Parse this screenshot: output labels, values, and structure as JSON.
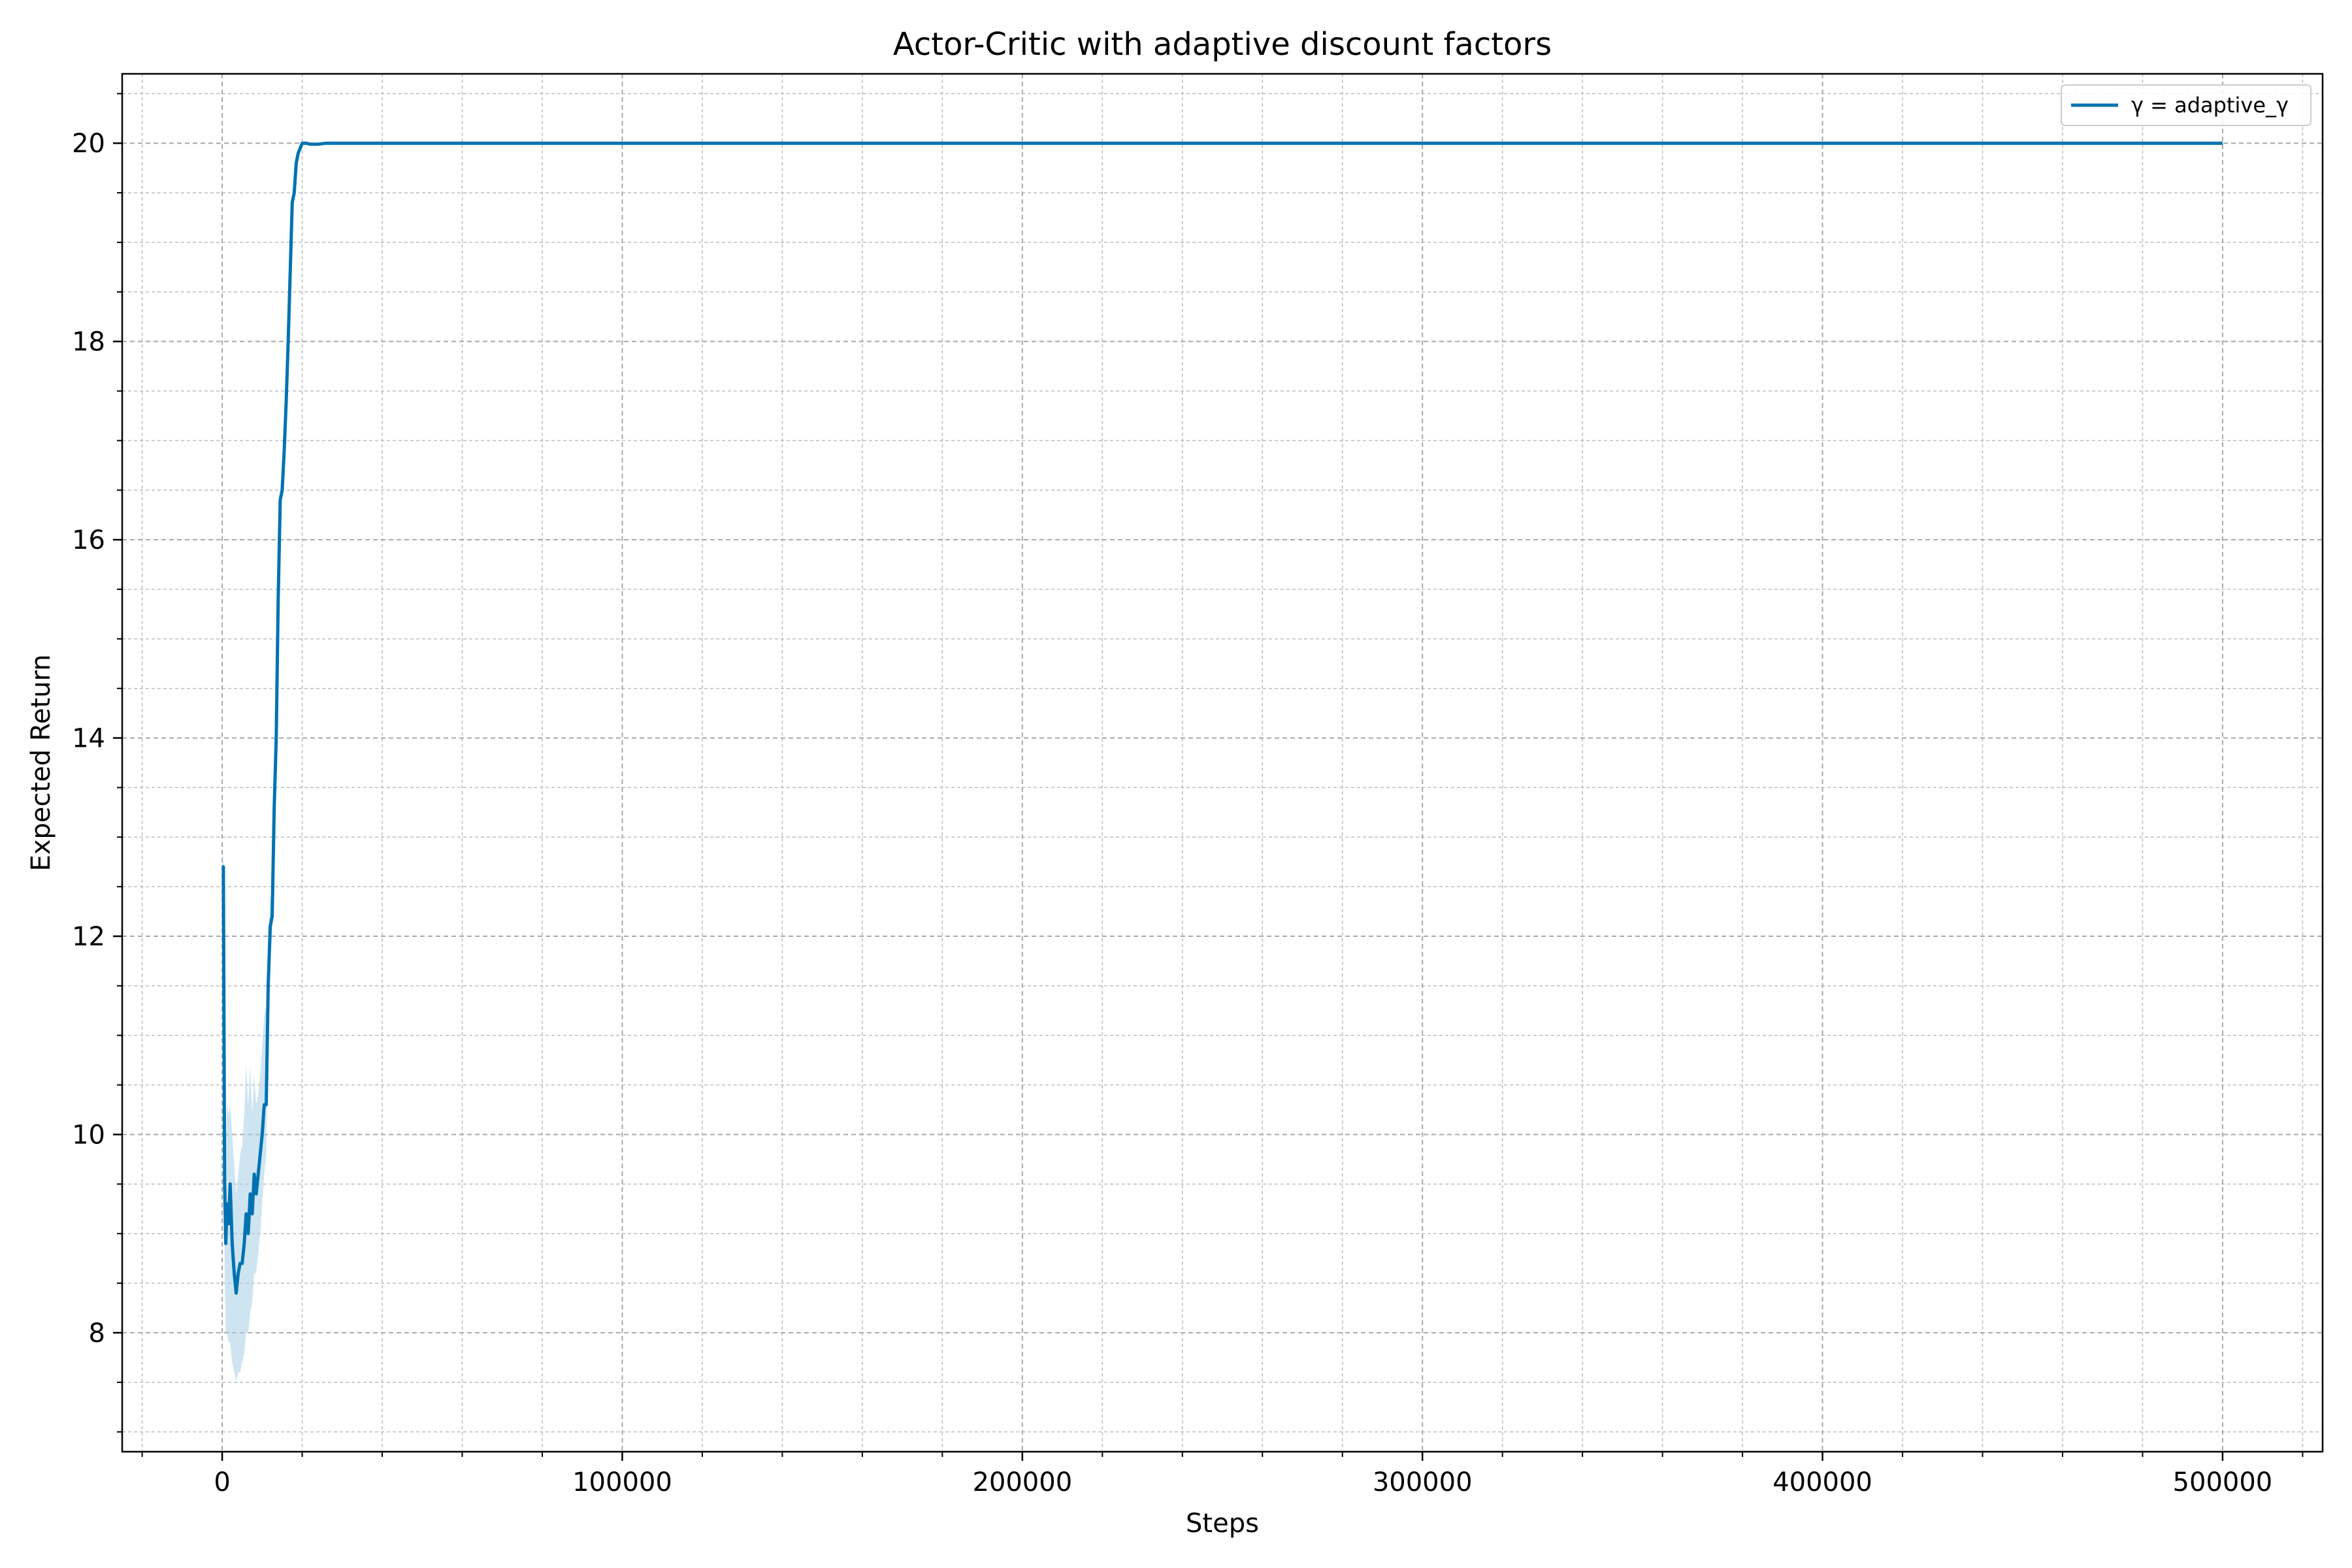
{
  "chart_data": {
    "type": "line",
    "title": "Actor-Critic with adaptive discount factors",
    "xlabel": "Steps",
    "ylabel": "Expected Return",
    "xlim": [
      -25000,
      525000
    ],
    "ylim": [
      6.8,
      20.7
    ],
    "x_ticks": [
      0,
      100000,
      200000,
      300000,
      400000,
      500000
    ],
    "x_tick_labels": [
      "0",
      "100000",
      "200000",
      "300000",
      "400000",
      "500000"
    ],
    "y_ticks": [
      8,
      10,
      12,
      14,
      16,
      18,
      20
    ],
    "y_tick_labels": [
      "8",
      "10",
      "12",
      "14",
      "16",
      "18",
      "20"
    ],
    "grid": true,
    "minor_grid": true,
    "legend_position": "top-right",
    "series": [
      {
        "name": "γ = adaptive_γ",
        "color": "#0072b2",
        "band_color": "#a6cfe6",
        "x": [
          0,
          300,
          600,
          900,
          1200,
          1600,
          2000,
          2500,
          3000,
          3500,
          4000,
          4500,
          5000,
          5500,
          6000,
          6500,
          7000,
          7500,
          8000,
          8500,
          9000,
          9500,
          10000,
          10500,
          11000,
          11500,
          12000,
          12500,
          13000,
          13500,
          14000,
          14500,
          15000,
          15500,
          16000,
          16500,
          17000,
          17500,
          18000,
          18500,
          19000,
          19500,
          20000,
          21000,
          22000,
          24000,
          26000,
          30000,
          40000,
          100000,
          200000,
          300000,
          400000,
          500000
        ],
        "y": [
          12.7,
          12.7,
          9.5,
          8.9,
          9.3,
          9.1,
          9.5,
          8.9,
          8.6,
          8.4,
          8.6,
          8.7,
          8.7,
          8.9,
          9.2,
          9.0,
          9.4,
          9.2,
          9.6,
          9.4,
          9.6,
          9.8,
          10.0,
          10.3,
          10.3,
          11.5,
          12.1,
          12.2,
          13.3,
          14.0,
          15.4,
          16.4,
          16.5,
          16.9,
          17.4,
          18.0,
          18.7,
          19.4,
          19.5,
          19.8,
          19.9,
          19.95,
          20.0,
          20.0,
          19.99,
          19.99,
          20.0,
          20.0,
          20.0,
          20.0,
          20.0,
          20.0,
          20.0,
          20.0
        ],
        "band_lower": [
          12.6,
          12.6,
          8.6,
          8.0,
          8.0,
          7.9,
          7.9,
          7.7,
          7.6,
          7.5,
          7.6,
          7.6,
          7.7,
          7.8,
          8.0,
          8.0,
          8.2,
          8.3,
          8.6,
          8.6,
          8.8,
          9.0,
          9.3,
          9.6,
          9.8,
          11.0,
          11.8,
          12.0,
          13.2,
          13.9,
          15.4,
          16.4,
          16.5,
          16.9,
          17.4,
          18.0,
          18.7,
          19.4,
          19.5,
          19.8,
          19.9,
          19.95,
          20.0,
          20.0,
          19.99,
          19.99,
          20.0,
          20.0,
          20.0,
          20.0,
          20.0,
          20.0,
          20.0,
          20.0
        ],
        "band_upper": [
          12.8,
          12.8,
          10.3,
          9.8,
          10.3,
          10.2,
          10.3,
          10.0,
          9.7,
          9.4,
          9.6,
          9.8,
          9.9,
          10.2,
          10.7,
          10.3,
          10.7,
          10.2,
          10.6,
          10.3,
          10.4,
          10.6,
          10.9,
          11.2,
          11.3,
          12.0,
          12.4,
          12.4,
          13.4,
          14.1,
          15.5,
          16.5,
          16.6,
          17.0,
          17.5,
          18.1,
          18.8,
          19.5,
          19.6,
          19.85,
          19.95,
          20.0,
          20.0,
          20.0,
          19.99,
          19.99,
          20.0,
          20.0,
          20.0,
          20.0,
          20.0,
          20.0,
          20.0,
          20.0
        ]
      }
    ]
  }
}
